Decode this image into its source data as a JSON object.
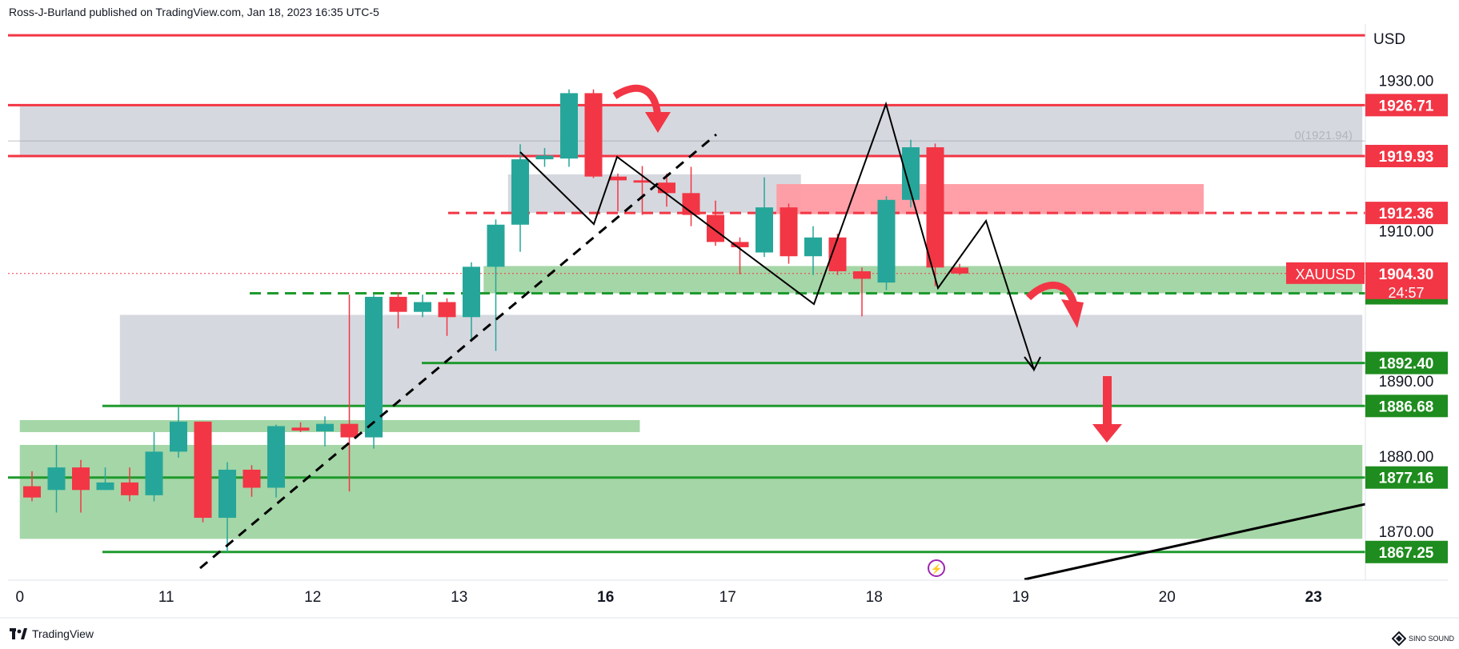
{
  "header": {
    "attribution": "Ross-J-Burland published on TradingView.com, Jan 18, 2023 16:35 UTC-5"
  },
  "footer": {
    "brand": "TradingView",
    "corner_logo": "SINO SOUND"
  },
  "colors": {
    "up": "#26a69a",
    "down": "#f23645",
    "resistance": "#f23645",
    "support": "#1f9a2e",
    "support_label_bg": "#1e8c1e",
    "resistance_label_bg": "#f23645",
    "zone_gray": "#d1d4dc",
    "zone_green": "#a5d6a7",
    "zone_red": "#ff9aa2"
  },
  "chart_data": {
    "type": "candlestick",
    "symbol": "XAUUSD",
    "currency": "USD",
    "ylim": [
      1863.5,
      1937.5
    ],
    "y_ticks": [
      "1930.00",
      "1910.00",
      "1890.00",
      "1880.00",
      "1870.00"
    ],
    "x_ticks": [
      {
        "label": "0",
        "slot": -0.5
      },
      {
        "label": "11",
        "slot": 5.5
      },
      {
        "label": "12",
        "slot": 11.5
      },
      {
        "label": "13",
        "slot": 17.5
      },
      {
        "label": "16",
        "slot": 23.5,
        "bold": true
      },
      {
        "label": "17",
        "slot": 28.5
      },
      {
        "label": "18",
        "slot": 34.5
      },
      {
        "label": "19",
        "slot": 40.5
      },
      {
        "label": "20",
        "slot": 46.5
      },
      {
        "label": "23",
        "slot": 52.5,
        "bold": true
      }
    ],
    "candles": [
      {
        "o": 1876.0,
        "h": 1878.0,
        "l": 1874.0,
        "c": 1874.5
      },
      {
        "o": 1875.5,
        "h": 1881.5,
        "l": 1872.5,
        "c": 1878.5
      },
      {
        "o": 1878.5,
        "h": 1879.5,
        "l": 1872.5,
        "c": 1875.5
      },
      {
        "o": 1875.5,
        "h": 1878.5,
        "l": 1875.5,
        "c": 1876.5
      },
      {
        "o": 1876.5,
        "h": 1878.5,
        "l": 1874.0,
        "c": 1874.8
      },
      {
        "o": 1874.8,
        "h": 1883.2,
        "l": 1874.0,
        "c": 1880.6
      },
      {
        "o": 1880.6,
        "h": 1886.5,
        "l": 1879.8,
        "c": 1884.6
      },
      {
        "o": 1884.6,
        "h": 1884.6,
        "l": 1871.2,
        "c": 1871.8
      },
      {
        "o": 1871.8,
        "h": 1879.2,
        "l": 1867.2,
        "c": 1878.2
      },
      {
        "o": 1878.2,
        "h": 1878.8,
        "l": 1874.6,
        "c": 1875.8
      },
      {
        "o": 1875.8,
        "h": 1884.2,
        "l": 1874.5,
        "c": 1884.0
      },
      {
        "o": 1883.8,
        "h": 1884.5,
        "l": 1883.2,
        "c": 1883.4
      },
      {
        "o": 1883.3,
        "h": 1885.3,
        "l": 1881.3,
        "c": 1884.3
      },
      {
        "o": 1884.3,
        "h": 1901.5,
        "l": 1875.3,
        "c": 1882.5
      },
      {
        "o": 1882.5,
        "h": 1901.5,
        "l": 1881.0,
        "c": 1901.2
      },
      {
        "o": 1901.2,
        "h": 1901.8,
        "l": 1897.0,
        "c": 1899.2
      },
      {
        "o": 1899.2,
        "h": 1901.5,
        "l": 1898.5,
        "c": 1900.5
      },
      {
        "o": 1900.5,
        "h": 1901.0,
        "l": 1896.0,
        "c": 1898.5
      },
      {
        "o": 1898.5,
        "h": 1905.8,
        "l": 1895.5,
        "c": 1905.2
      },
      {
        "o": 1905.2,
        "h": 1911.5,
        "l": 1894.0,
        "c": 1910.8
      },
      {
        "o": 1910.8,
        "h": 1921.5,
        "l": 1907.2,
        "c": 1919.5
      },
      {
        "o": 1919.5,
        "h": 1921.0,
        "l": 1918.5,
        "c": 1920.0
      },
      {
        "o": 1919.6,
        "h": 1928.8,
        "l": 1918.5,
        "c": 1928.3
      },
      {
        "o": 1928.3,
        "h": 1928.8,
        "l": 1917.0,
        "c": 1917.2
      },
      {
        "o": 1917.2,
        "h": 1917.6,
        "l": 1912.6,
        "c": 1916.7
      },
      {
        "o": 1916.7,
        "h": 1918.6,
        "l": 1912.1,
        "c": 1916.4
      },
      {
        "o": 1916.4,
        "h": 1917.6,
        "l": 1913.2,
        "c": 1915.0
      },
      {
        "o": 1915.0,
        "h": 1918.5,
        "l": 1910.6,
        "c": 1912.1
      },
      {
        "o": 1912.1,
        "h": 1914.0,
        "l": 1908.0,
        "c": 1908.5
      },
      {
        "o": 1908.5,
        "h": 1909.1,
        "l": 1904.2,
        "c": 1907.8
      },
      {
        "o": 1907.1,
        "h": 1917.1,
        "l": 1906.5,
        "c": 1913.1
      },
      {
        "o": 1913.1,
        "h": 1913.6,
        "l": 1905.6,
        "c": 1906.6
      },
      {
        "o": 1906.6,
        "h": 1910.6,
        "l": 1904.1,
        "c": 1909.1
      },
      {
        "o": 1909.1,
        "h": 1909.6,
        "l": 1904.1,
        "c": 1904.6
      },
      {
        "o": 1904.6,
        "h": 1905.1,
        "l": 1898.6,
        "c": 1903.6
      },
      {
        "o": 1903.1,
        "h": 1914.6,
        "l": 1902.1,
        "c": 1914.1
      },
      {
        "o": 1914.1,
        "h": 1922.1,
        "l": 1913.1,
        "c": 1921.1
      },
      {
        "o": 1921.1,
        "h": 1921.6,
        "l": 1902.6,
        "c": 1905.1
      },
      {
        "o": 1905.1,
        "h": 1905.6,
        "l": 1904.1,
        "c": 1904.3
      }
    ],
    "price_levels": [
      {
        "price": "1926.71",
        "kind": "resistance"
      },
      {
        "price": "1919.93",
        "kind": "resistance"
      },
      {
        "price": "1912.36",
        "kind": "resistance",
        "dashed": true
      },
      {
        "price": "1901.67",
        "kind": "support",
        "dashed": true
      },
      {
        "price": "1892.40",
        "kind": "support"
      },
      {
        "price": "1886.68",
        "kind": "support"
      },
      {
        "price": "1877.16",
        "kind": "support"
      },
      {
        "price": "1867.25",
        "kind": "support"
      }
    ],
    "top_level": {
      "price": 1936.0,
      "kind": "resistance"
    },
    "current": {
      "symbol_label": "XAUUSD",
      "price": "1904.30",
      "countdown": "24:57",
      "value": 1904.3
    },
    "fib_label": "0(1921.94)",
    "fib_value": 1921.94,
    "zones": [
      {
        "kind": "gray",
        "slot_from": -0.5,
        "slot_to": 54.5,
        "top": 1926.71,
        "bottom": 1919.93
      },
      {
        "kind": "gray",
        "slot_from": 19.5,
        "slot_to": 31.5,
        "top": 1917.5,
        "bottom": 1912.36
      },
      {
        "kind": "red",
        "slot_from": 30.5,
        "slot_to": 48.0,
        "top": 1916.2,
        "bottom": 1912.2
      },
      {
        "kind": "green",
        "slot_from": 18.5,
        "slot_to": 54.5,
        "top": 1905.3,
        "bottom": 1901.67
      },
      {
        "kind": "gray",
        "slot_from": 3.6,
        "slot_to": 54.5,
        "top": 1898.8,
        "bottom": 1886.68
      },
      {
        "kind": "green",
        "slot_from": -0.5,
        "slot_to": 24.9,
        "top": 1884.8,
        "bottom": 1883.2
      },
      {
        "kind": "green",
        "slot_from": -0.5,
        "slot_to": 54.5,
        "top": 1881.5,
        "bottom": 1869.0
      }
    ]
  }
}
